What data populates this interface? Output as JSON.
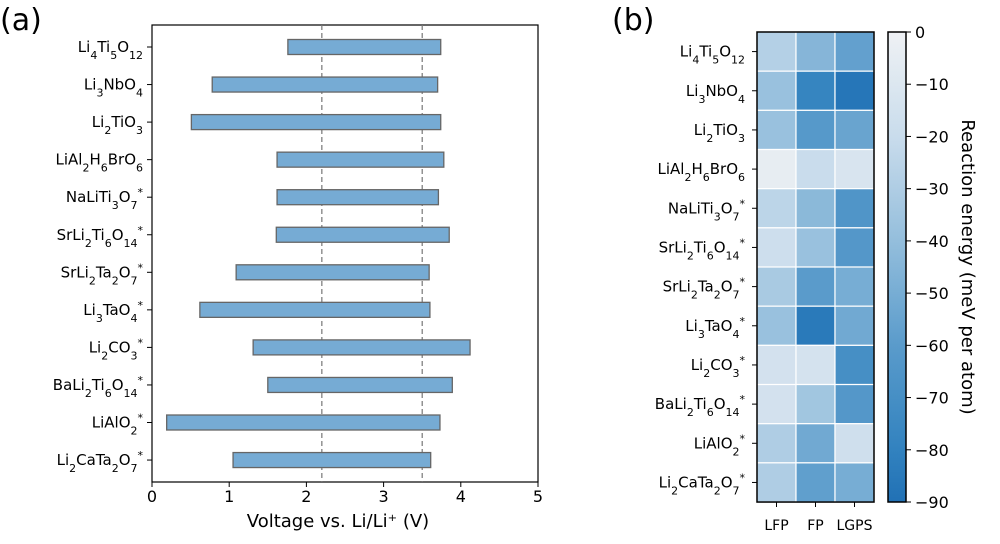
{
  "chart_data": [
    {
      "type": "bar",
      "panel_label": "(a)",
      "orientation": "horizontal-range",
      "categories": [
        "Li4Ti5O12",
        "Li3NbO4",
        "Li2TiO3",
        "LiAl2H6BrO6",
        "NaLiTi3O7*",
        "SrLi2Ti6O14*",
        "SrLi2Ta2O7*",
        "Li3TaO4*",
        "Li2CO3*",
        "BaLi2Ti6O14*",
        "LiAlO2*",
        "Li2CaTa2O7*"
      ],
      "ranges": [
        [
          1.76,
          3.74
        ],
        [
          0.78,
          3.7
        ],
        [
          0.51,
          3.74
        ],
        [
          1.62,
          3.78
        ],
        [
          1.62,
          3.71
        ],
        [
          1.61,
          3.85
        ],
        [
          1.09,
          3.59
        ],
        [
          0.62,
          3.6
        ],
        [
          1.31,
          4.12
        ],
        [
          1.5,
          3.89
        ],
        [
          0.19,
          3.73
        ],
        [
          1.05,
          3.61
        ]
      ],
      "reference_lines": [
        2.2,
        3.5
      ],
      "xlabel": "Voltage vs. Li/Li⁺ (V)",
      "xlim": [
        0,
        5
      ],
      "xticks": [
        "0",
        "1",
        "2",
        "3",
        "4",
        "5"
      ],
      "bar_color": "#76abd4"
    },
    {
      "type": "heatmap",
      "panel_label": "(b)",
      "rows": [
        "Li4Ti5O12",
        "Li3NbO4",
        "Li2TiO3",
        "LiAl2H6BrO6",
        "NaLiTi3O7*",
        "SrLi2Ti6O14*",
        "SrLi2Ta2O7*",
        "Li3TaO4*",
        "Li2CO3*",
        "BaLi2Ti6O14*",
        "LiAlO2*",
        "Li2CaTa2O7*"
      ],
      "columns": [
        "LFP",
        "FP",
        "LGPS"
      ],
      "values": [
        [
          -28,
          -45,
          -57
        ],
        [
          -38,
          -78,
          -87
        ],
        [
          -38,
          -62,
          -55
        ],
        [
          -4,
          -20,
          -12
        ],
        [
          -25,
          -43,
          -65
        ],
        [
          -18,
          -38,
          -63
        ],
        [
          -32,
          -60,
          -50
        ],
        [
          -38,
          -85,
          -52
        ],
        [
          -15,
          -14,
          -70
        ],
        [
          -15,
          -35,
          -63
        ],
        [
          -30,
          -52,
          -17
        ],
        [
          -30,
          -58,
          -50
        ]
      ],
      "colorbar_label": "Reaction energy (meV per atom)",
      "colorbar_ticks": [
        "0",
        "−10",
        "−20",
        "−30",
        "−40",
        "−50",
        "−60",
        "−70",
        "−80",
        "−90"
      ],
      "vmin": -90,
      "vmax": 0
    }
  ]
}
